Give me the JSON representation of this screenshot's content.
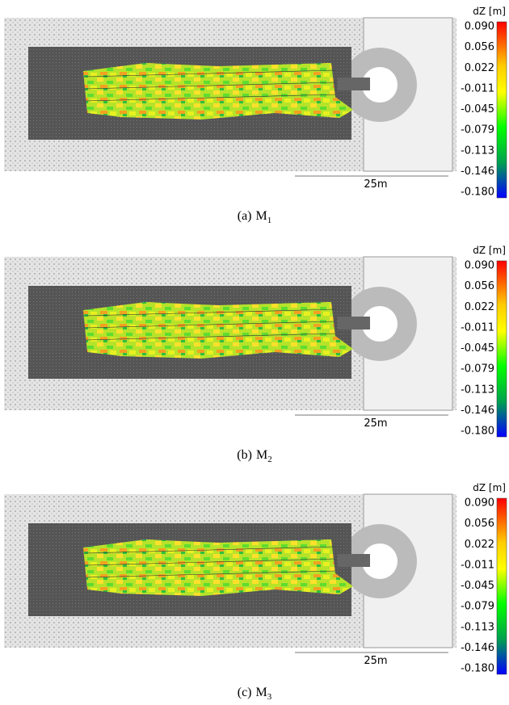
{
  "colorbar": {
    "title": "dZ [m]",
    "ticks": [
      "0.090",
      "0.056",
      "0.022",
      "-0.011",
      "-0.045",
      "-0.079",
      "-0.113",
      "-0.146",
      "-0.180"
    ]
  },
  "scale_bar": "25m",
  "panels": [
    {
      "label": "(a)",
      "name": "M",
      "subscript": "1"
    },
    {
      "label": "(b)",
      "name": "M",
      "subscript": "2"
    },
    {
      "label": "(c)",
      "name": "M",
      "subscript": "3"
    }
  ]
}
